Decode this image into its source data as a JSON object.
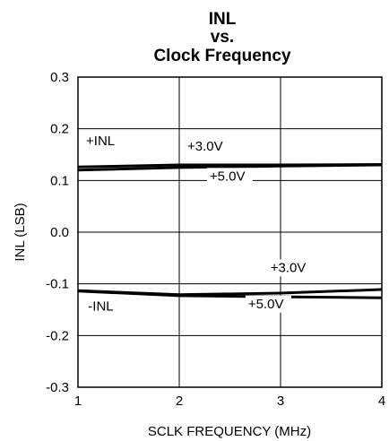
{
  "chart_data": {
    "type": "line",
    "title": [
      "INL",
      "vs.",
      "Clock Frequency"
    ],
    "xlabel": "SCLK FREQUENCY (MHz)",
    "ylabel": "INL (LSB)",
    "xlim": [
      1,
      4
    ],
    "ylim": [
      -0.3,
      0.3
    ],
    "x_ticks": [
      "1",
      "2",
      "3",
      "4"
    ],
    "y_ticks": [
      "0.3",
      "0.2",
      "0.1",
      "0.0",
      "-0.1",
      "-0.2",
      "-0.3"
    ],
    "grid": true,
    "series": [
      {
        "x": [
          1,
          2,
          3,
          4
        ],
        "y": [
          0.126,
          0.13,
          0.13,
          0.131
        ],
        "color": "#000000"
      },
      {
        "x": [
          1,
          2,
          3,
          4
        ],
        "y": [
          0.12,
          0.125,
          0.128,
          0.13
        ],
        "color": "#000000"
      },
      {
        "x": [
          1,
          2,
          3,
          4
        ],
        "y": [
          -0.113,
          -0.121,
          -0.118,
          -0.111
        ],
        "color": "#000000"
      },
      {
        "x": [
          1,
          2,
          3,
          4
        ],
        "y": [
          -0.114,
          -0.123,
          -0.125,
          -0.127
        ],
        "color": "#000000"
      }
    ],
    "annotations": [
      {
        "text": "+INL",
        "x": 1.08,
        "y": 0.168
      },
      {
        "text": "+3.0V",
        "x": 2.08,
        "y": 0.158
      },
      {
        "text": "+5.0V",
        "x": 2.3,
        "y": 0.1
      },
      {
        "text": "+3.0V",
        "x": 2.9,
        "y": -0.077
      },
      {
        "text": "-INL",
        "x": 1.1,
        "y": -0.152
      },
      {
        "text": "+5.0V",
        "x": 2.68,
        "y": -0.147
      }
    ]
  }
}
